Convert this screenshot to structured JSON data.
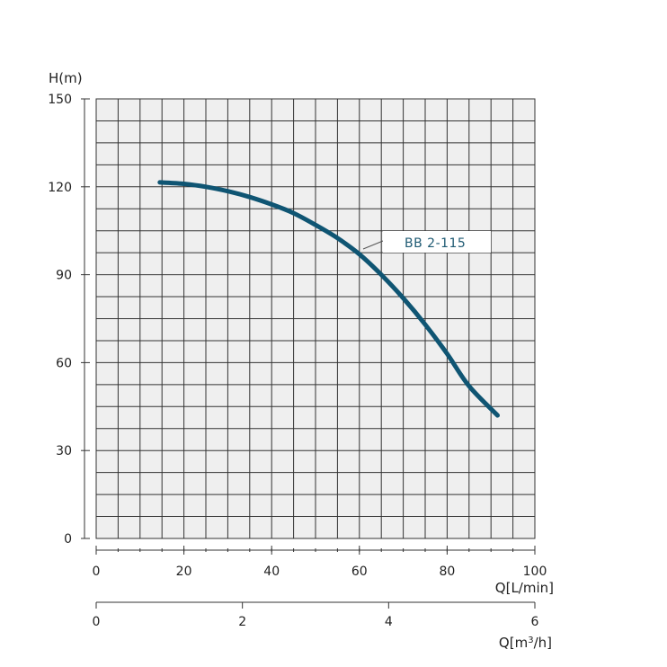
{
  "chart_data": {
    "type": "line",
    "ylabel": "H(m)",
    "xlabel": "Q[L/min]",
    "x2label_prefix": "Q[m",
    "x2label_sup": "3",
    "x2label_suffix": "/h]",
    "ylim": [
      0,
      150
    ],
    "xlim": [
      0,
      100
    ],
    "x2lim": [
      0,
      6
    ],
    "yticks": [
      "0",
      "30",
      "60",
      "90",
      "120",
      "150"
    ],
    "xticks": [
      "0",
      "20",
      "40",
      "60",
      "80",
      "100"
    ],
    "x2ticks": [
      "0",
      "2",
      "4",
      "6"
    ],
    "grid": true,
    "series": [
      {
        "name": "BB 2-115",
        "color": "#0f5573",
        "x": [
          14.5,
          20,
          25,
          30,
          35,
          40,
          45,
          50,
          55,
          60,
          65,
          70,
          75,
          80,
          85,
          91.5
        ],
        "y": [
          121.5,
          121,
          120,
          118.5,
          116.5,
          114,
          111,
          107,
          102.5,
          97,
          90,
          82,
          73,
          63,
          52,
          42
        ]
      }
    ]
  }
}
